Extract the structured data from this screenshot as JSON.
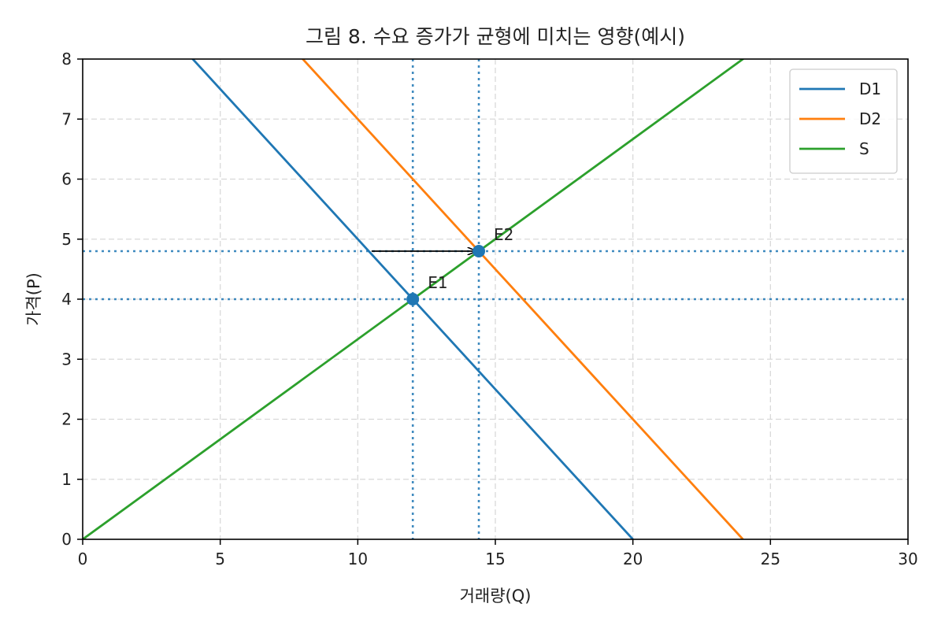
{
  "chart_data": {
    "type": "line",
    "title": "그림 8. 수요 증가가 균형에 미치는 영향(예시)",
    "xlabel": "거래량(Q)",
    "ylabel": "가격(P)",
    "xlim": [
      0,
      30
    ],
    "ylim": [
      0,
      8
    ],
    "xticks": [
      0,
      5,
      10,
      15,
      20,
      25,
      30
    ],
    "yticks": [
      0,
      1,
      2,
      3,
      4,
      5,
      6,
      7,
      8
    ],
    "grid": true,
    "legend_position": "top-right",
    "series": [
      {
        "name": "D1",
        "color": "#1f77b4",
        "x": [
          0,
          20
        ],
        "y": [
          10,
          0
        ]
      },
      {
        "name": "D2",
        "color": "#ff7f0e",
        "x": [
          0,
          24
        ],
        "y": [
          12,
          0
        ]
      },
      {
        "name": "S",
        "color": "#2ca02c",
        "x": [
          0,
          30
        ],
        "y": [
          0,
          10
        ]
      }
    ],
    "equilibrium_points": [
      {
        "label": "E1",
        "x": 12,
        "y": 4.0,
        "color": "#1f77b4"
      },
      {
        "label": "E2",
        "x": 14.4,
        "y": 4.8,
        "color": "#1f77b4"
      }
    ],
    "reference_lines": {
      "color": "#1f77b4",
      "vertical": [
        12,
        14.4
      ],
      "horizontal": [
        4.0,
        4.8
      ]
    },
    "arrow": {
      "x_from": 10.5,
      "x_to": 14.3,
      "y": 4.8
    }
  }
}
